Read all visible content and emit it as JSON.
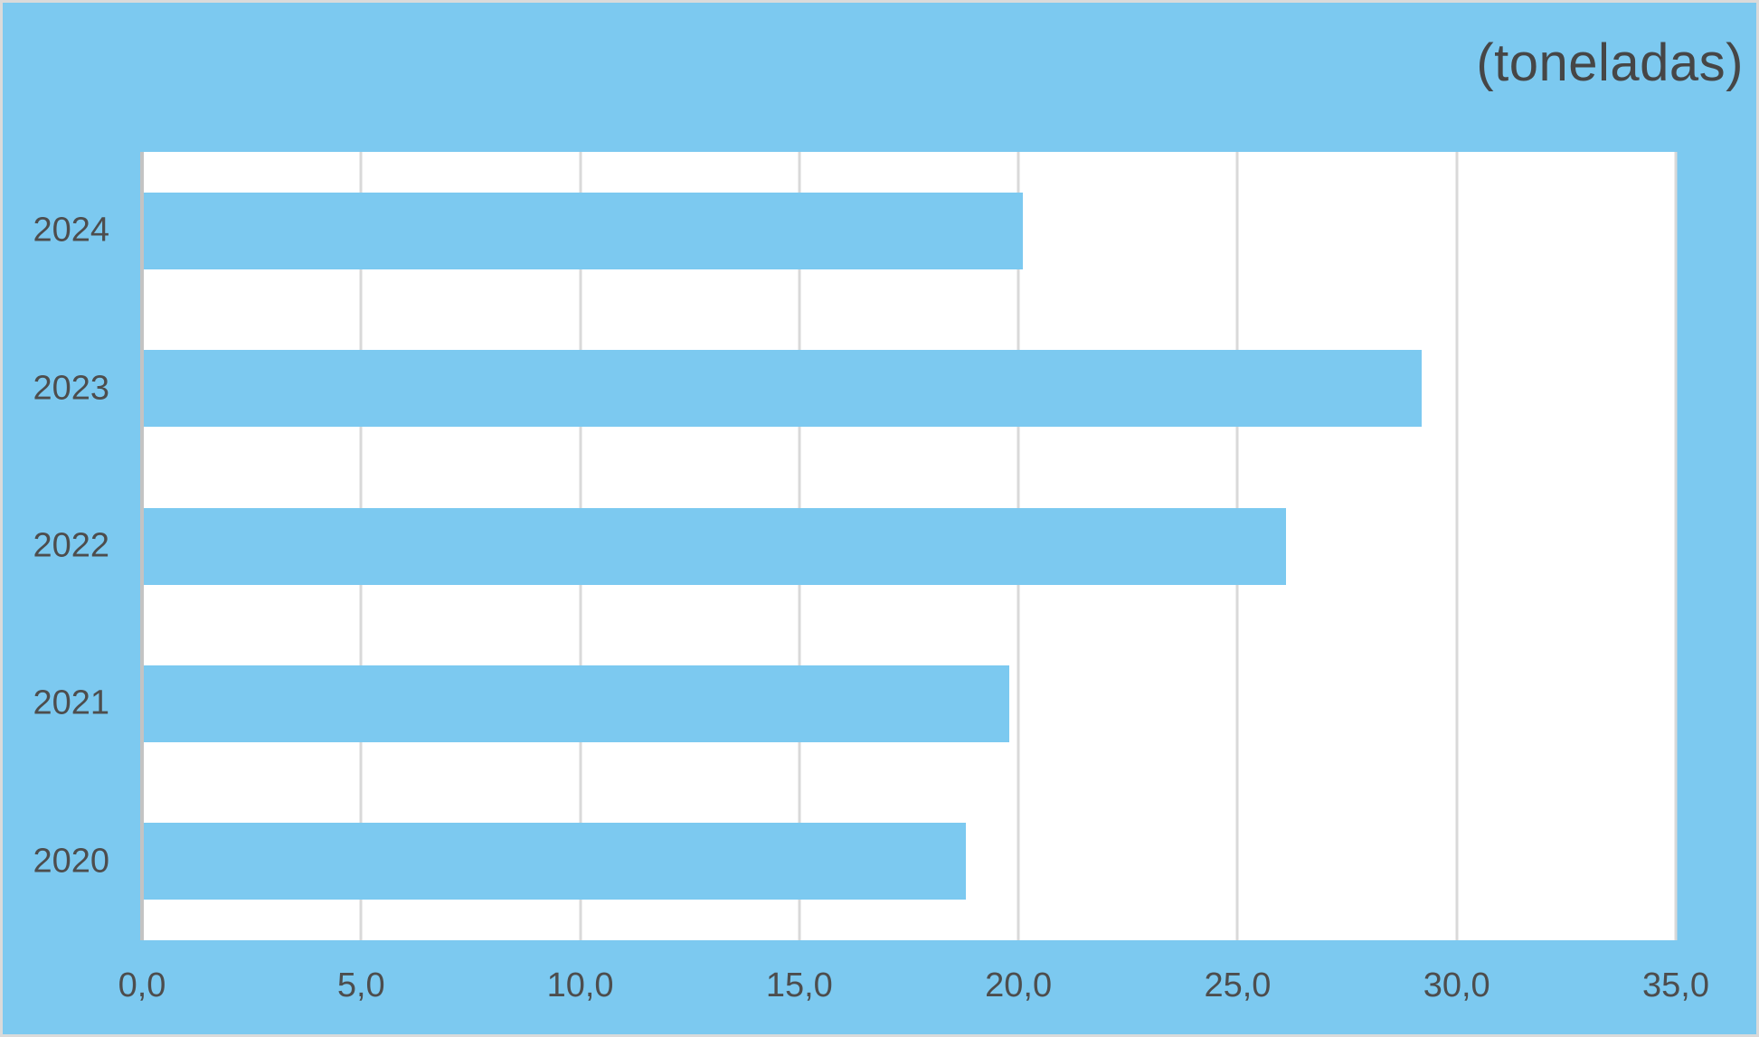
{
  "chart_data": {
    "type": "bar",
    "orientation": "horizontal",
    "title": "(toneladas)",
    "categories": [
      "2024",
      "2023",
      "2022",
      "2021",
      "2020"
    ],
    "values": [
      20.1,
      29.2,
      26.1,
      19.8,
      18.8
    ],
    "xlabel": "",
    "ylabel": "",
    "xlim": [
      0,
      35
    ],
    "xticks": [
      0,
      5,
      10,
      15,
      20,
      25,
      30,
      35
    ],
    "xtick_labels": [
      "0,0",
      "5,0",
      "10,0",
      "15,0",
      "20,0",
      "25,0",
      "30,0",
      "35,0"
    ],
    "grid": "vertical-only",
    "legend_position": "none",
    "colors": {
      "background": "#7cc9f0",
      "bar": "#7cc9f0",
      "plot_background": "#ffffff",
      "gridline": "#d9d9d9",
      "axis_line": "#c3c3c3",
      "label_text": "#4d4d4d",
      "title_text": "#464646",
      "outer_border": "#dadada"
    }
  }
}
